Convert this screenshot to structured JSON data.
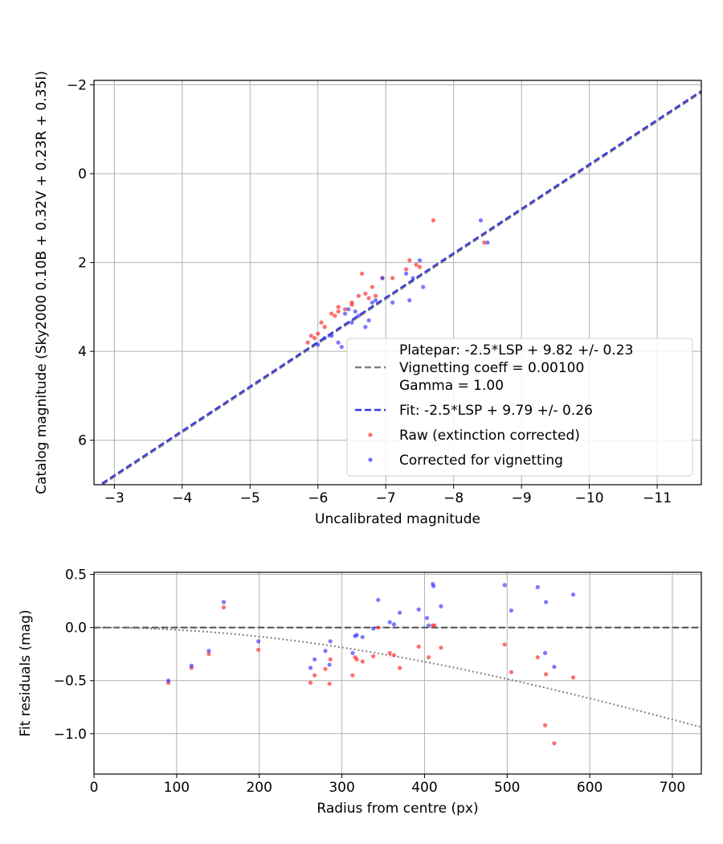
{
  "chart_data": [
    {
      "type": "scatter",
      "xlabel": "Uncalibrated magnitude",
      "ylabel": "Catalog magnitude (Sky2000 0.10B + 0.32V + 0.23R + 0.35I)",
      "xlim": [
        -2.7,
        -11.65
      ],
      "ylim": [
        7.0,
        -2.1
      ],
      "x_inverted": true,
      "y_inverted": true,
      "grid": true,
      "xticks": [
        {
          "value": -3,
          "label": "−3"
        },
        {
          "value": -4,
          "label": "−4"
        },
        {
          "value": -5,
          "label": "−5"
        },
        {
          "value": -6,
          "label": "−6"
        },
        {
          "value": -7,
          "label": "−7"
        },
        {
          "value": -8,
          "label": "−8"
        },
        {
          "value": -9,
          "label": "−9"
        },
        {
          "value": -10,
          "label": "−10"
        },
        {
          "value": -11,
          "label": "−11"
        }
      ],
      "yticks": [
        {
          "value": -2,
          "label": "−2"
        },
        {
          "value": 0,
          "label": "0"
        },
        {
          "value": 2,
          "label": "2"
        },
        {
          "value": 4,
          "label": "4"
        },
        {
          "value": 6,
          "label": "6"
        }
      ],
      "legend_position": "lower-right",
      "legend": [
        {
          "kind": "line",
          "style": "dashed",
          "color": "#808080",
          "lines": [
            "Platepar: -2.5*LSP + 9.82 +/- 0.23",
            "Vignetting coeff = 0.00100",
            "Gamma = 1.00"
          ]
        },
        {
          "kind": "line",
          "style": "dashed",
          "color": "#3333dd",
          "lines": [
            "Fit: -2.5*LSP + 9.79 +/- 0.26"
          ]
        },
        {
          "kind": "point",
          "color": "#ff3333",
          "lines": [
            "Raw (extinction corrected)"
          ]
        },
        {
          "kind": "point",
          "color": "#3333ff",
          "lines": [
            "Corrected for vignetting"
          ]
        }
      ],
      "lines": [
        {
          "name": "Platepar: -2.5*LSP + 9.82 +/- 0.23",
          "color": "#808080",
          "style": "dashed",
          "x": [
            -2.7,
            -11.65
          ],
          "y": [
            7.12,
            -1.83
          ]
        },
        {
          "name": "Fit: -2.5*LSP + 9.79 +/- 0.26",
          "color": "#3333dd",
          "style": "dashed",
          "x": [
            -2.7,
            -11.65
          ],
          "y": [
            7.09,
            -1.86
          ]
        }
      ],
      "series": [
        {
          "name": "Raw (extinction corrected)",
          "color": "#ff3333",
          "points": [
            [
              -5.85,
              3.8
            ],
            [
              -5.9,
              3.65
            ],
            [
              -5.95,
              3.7
            ],
            [
              -6.0,
              3.6
            ],
            [
              -6.05,
              3.35
            ],
            [
              -6.1,
              3.45
            ],
            [
              -6.2,
              3.15
            ],
            [
              -6.25,
              3.2
            ],
            [
              -6.3,
              3.1
            ],
            [
              -6.3,
              3.0
            ],
            [
              -6.4,
              3.05
            ],
            [
              -6.5,
              2.9
            ],
            [
              -6.5,
              2.95
            ],
            [
              -6.6,
              2.75
            ],
            [
              -6.65,
              2.25
            ],
            [
              -6.7,
              2.7
            ],
            [
              -6.75,
              2.8
            ],
            [
              -6.8,
              2.55
            ],
            [
              -6.85,
              2.75
            ],
            [
              -6.95,
              2.35
            ],
            [
              -7.1,
              2.35
            ],
            [
              -7.3,
              2.15
            ],
            [
              -7.35,
              1.95
            ],
            [
              -7.45,
              2.05
            ],
            [
              -7.5,
              2.1
            ],
            [
              -7.7,
              1.05
            ],
            [
              -8.45,
              1.55
            ]
          ]
        },
        {
          "name": "Corrected for vignetting",
          "color": "#3333ff",
          "points": [
            [
              -6.0,
              3.85
            ],
            [
              -6.1,
              3.7
            ],
            [
              -6.2,
              3.65
            ],
            [
              -6.3,
              3.8
            ],
            [
              -6.35,
              3.9
            ],
            [
              -6.4,
              3.15
            ],
            [
              -6.45,
              3.05
            ],
            [
              -6.5,
              3.35
            ],
            [
              -6.55,
              3.1
            ],
            [
              -6.6,
              3.2
            ],
            [
              -6.7,
              3.45
            ],
            [
              -6.75,
              3.3
            ],
            [
              -6.8,
              2.9
            ],
            [
              -6.85,
              2.85
            ],
            [
              -6.95,
              2.35
            ],
            [
              -7.1,
              2.9
            ],
            [
              -7.3,
              2.25
            ],
            [
              -7.35,
              2.85
            ],
            [
              -7.4,
              2.35
            ],
            [
              -7.5,
              1.95
            ],
            [
              -7.55,
              2.55
            ],
            [
              -8.4,
              1.05
            ],
            [
              -8.5,
              1.55
            ]
          ]
        }
      ]
    },
    {
      "type": "scatter",
      "xlabel": "Radius from centre (px)",
      "ylabel": "Fit residuals (mag)",
      "xlim": [
        0,
        735
      ],
      "ylim": [
        -1.38,
        0.52
      ],
      "grid": true,
      "xticks": [
        {
          "value": 0,
          "label": "0"
        },
        {
          "value": 100,
          "label": "100"
        },
        {
          "value": 200,
          "label": "200"
        },
        {
          "value": 300,
          "label": "300"
        },
        {
          "value": 400,
          "label": "400"
        },
        {
          "value": 500,
          "label": "500"
        },
        {
          "value": 600,
          "label": "600"
        },
        {
          "value": 700,
          "label": "700"
        }
      ],
      "yticks": [
        {
          "value": 0.5,
          "label": "0.5"
        },
        {
          "value": 0.0,
          "label": "0.0"
        },
        {
          "value": -0.5,
          "label": "−0.5"
        },
        {
          "value": -1.0,
          "label": "−1.0"
        }
      ],
      "reference_line": {
        "y": 0.0,
        "color": "#555555",
        "style": "dashed"
      },
      "vignetting_curve": {
        "color": "#808080",
        "style": "dotted",
        "coeff": 0.001,
        "gamma": 1.0
      },
      "series": [
        {
          "name": "Raw (extinction corrected)",
          "color": "#ff3333",
          "points": [
            [
              90,
              -0.52
            ],
            [
              118,
              -0.38
            ],
            [
              139,
              -0.25
            ],
            [
              157,
              0.19
            ],
            [
              199,
              -0.21
            ],
            [
              262,
              -0.52
            ],
            [
              267,
              -0.45
            ],
            [
              280,
              -0.39
            ],
            [
              285,
              -0.53
            ],
            [
              286,
              -0.3
            ],
            [
              313,
              -0.45
            ],
            [
              316,
              -0.28
            ],
            [
              318,
              -0.3
            ],
            [
              325,
              -0.32
            ],
            [
              338,
              -0.27
            ],
            [
              344,
              0.0
            ],
            [
              358,
              -0.24
            ],
            [
              363,
              -0.26
            ],
            [
              370,
              -0.38
            ],
            [
              393,
              -0.18
            ],
            [
              405,
              -0.28
            ],
            [
              410,
              0.02
            ],
            [
              412,
              0.02
            ],
            [
              420,
              -0.19
            ],
            [
              497,
              -0.16
            ],
            [
              505,
              -0.42
            ],
            [
              537,
              -0.28
            ],
            [
              546,
              -0.92
            ],
            [
              547,
              -0.44
            ],
            [
              557,
              -1.09
            ],
            [
              580,
              -0.47
            ]
          ]
        },
        {
          "name": "Corrected for vignetting",
          "color": "#3333ff",
          "points": [
            [
              90,
              -0.5
            ],
            [
              118,
              -0.36
            ],
            [
              139,
              -0.22
            ],
            [
              157,
              0.24
            ],
            [
              199,
              -0.13
            ],
            [
              262,
              -0.38
            ],
            [
              267,
              -0.3
            ],
            [
              280,
              -0.22
            ],
            [
              285,
              -0.35
            ],
            [
              286,
              -0.13
            ],
            [
              313,
              -0.24
            ],
            [
              316,
              -0.08
            ],
            [
              318,
              -0.07
            ],
            [
              325,
              -0.09
            ],
            [
              338,
              -0.01
            ],
            [
              344,
              0.26
            ],
            [
              358,
              0.05
            ],
            [
              363,
              0.03
            ],
            [
              370,
              0.14
            ],
            [
              393,
              0.17
            ],
            [
              403,
              0.09
            ],
            [
              405,
              0.02
            ],
            [
              410,
              0.41
            ],
            [
              411,
              0.39
            ],
            [
              420,
              0.2
            ],
            [
              497,
              0.4
            ],
            [
              505,
              0.16
            ],
            [
              537,
              0.38
            ],
            [
              546,
              -0.24
            ],
            [
              547,
              0.24
            ],
            [
              557,
              -0.37
            ],
            [
              580,
              0.31
            ]
          ]
        }
      ]
    }
  ]
}
